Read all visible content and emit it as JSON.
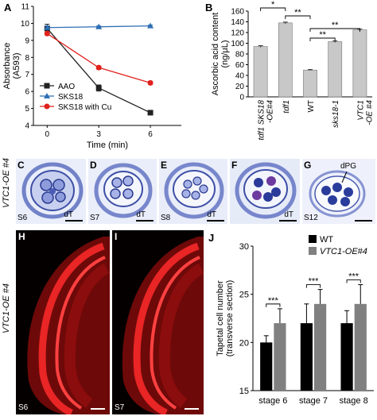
{
  "panels": {
    "A": "A",
    "B": "B",
    "C": "C",
    "D": "D",
    "E": "E",
    "F": "F",
    "G": "G",
    "H": "H",
    "I": "I",
    "J": "J"
  },
  "chart_data": [
    {
      "panel": "A",
      "type": "line",
      "x": [
        0,
        3,
        6
      ],
      "xlabel": "Time (min)",
      "ylabel": "Absorbance (A593)",
      "ylabel_lines": [
        "Absorbance",
        "(A593)"
      ],
      "xlim": [
        -0.8,
        7.8
      ],
      "ylim": [
        4,
        11
      ],
      "xticks": [
        0,
        3,
        6
      ],
      "yticks": [
        4,
        5,
        6,
        7,
        8,
        9,
        10,
        11
      ],
      "legend_position": "bottom-left",
      "series": [
        {
          "name": "AAO",
          "values": [
            9.7,
            6.2,
            4.75
          ],
          "errors": [
            0.25,
            0.18,
            0.12
          ],
          "color": "#222222",
          "marker": "square"
        },
        {
          "name": "SKS18",
          "values": [
            9.75,
            9.8,
            9.85
          ],
          "errors": [
            0.1,
            0.05,
            0.05
          ],
          "color": "#2e6fb5",
          "marker": "triangle"
        },
        {
          "name": "SKS18 with Cu",
          "values": [
            9.4,
            7.4,
            6.5
          ],
          "errors": [
            0.1,
            0.1,
            0.1
          ],
          "color": "#e0211c",
          "marker": "circle"
        }
      ]
    },
    {
      "panel": "B",
      "type": "bar",
      "categories": [
        "tdf1 SKS18-OE#4",
        "tdf1",
        "WT",
        "sks18-1",
        "VTC1-OE#4"
      ],
      "category_lines": [
        [
          "tdf1 SKS18",
          "-OE#4"
        ],
        [
          "tdf1"
        ],
        [
          "WT"
        ],
        [
          "sks18-1"
        ],
        [
          "VTC1",
          "-OE #4"
        ]
      ],
      "category_italic": [
        true,
        true,
        false,
        true,
        true
      ],
      "values": [
        94,
        138,
        50,
        103,
        125
      ],
      "errors": [
        1.5,
        1.5,
        1,
        1.5,
        1.5
      ],
      "ylabel": "Ascorbic acid content (ng/μL)",
      "ylabel_lines": [
        "Ascorbic acid content",
        "(ng/μL)"
      ],
      "ylim": [
        0,
        160
      ],
      "yticks": [
        0,
        20,
        40,
        60,
        80,
        100,
        120,
        140,
        160
      ],
      "bar_color": "#c8c8c8",
      "significance": [
        {
          "from": 0,
          "to": 1,
          "label": "*"
        },
        {
          "from": 1,
          "to": 2,
          "label": "**"
        },
        {
          "from": 2,
          "to": 3,
          "label": "**"
        },
        {
          "from": 2,
          "to": 4,
          "label": "**"
        }
      ]
    },
    {
      "panel": "J",
      "type": "bar",
      "categories": [
        "stage 6",
        "stage 7",
        "stage 8"
      ],
      "series": [
        {
          "name": "WT",
          "values": [
            20,
            22,
            22
          ],
          "errors": [
            0.7,
            2,
            1.3
          ],
          "color": "#000000"
        },
        {
          "name": "VTC1-OE#4",
          "values": [
            22,
            24,
            24
          ],
          "errors": [
            1.5,
            1.5,
            2
          ],
          "color": "#808080",
          "italic": true
        }
      ],
      "ylabel": "Tapetal cell number (transverse section)",
      "ylabel_lines": [
        "Tapetal cell number",
        "(transverse section)"
      ],
      "ylim": [
        15,
        30
      ],
      "yticks": [
        15,
        20,
        25,
        30
      ],
      "legend_position": "top-left",
      "significance": [
        {
          "category": 0,
          "label": "***"
        },
        {
          "category": 1,
          "label": "***"
        },
        {
          "category": 2,
          "label": "***"
        }
      ]
    }
  ],
  "micrographs": {
    "row_label": "VTC1-OE #4",
    "stages": [
      {
        "letter": "C",
        "stage": "S6",
        "annotation": "dT"
      },
      {
        "letter": "D",
        "stage": "S7",
        "annotation": "dT"
      },
      {
        "letter": "E",
        "stage": "S8",
        "annotation": "dT"
      },
      {
        "letter": "F",
        "stage": "",
        "annotation": "dT"
      },
      {
        "letter": "G",
        "stage": "S12",
        "annotation": "dPG"
      }
    ]
  },
  "confocal": {
    "row_label": "VTC1-OE #4",
    "panels": [
      {
        "letter": "H",
        "stage": "S6"
      },
      {
        "letter": "I",
        "stage": "S7"
      }
    ]
  }
}
